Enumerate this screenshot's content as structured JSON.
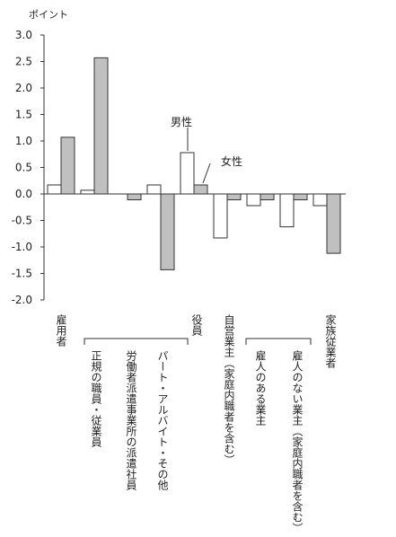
{
  "chart_data": {
    "type": "bar",
    "title": "",
    "ylabel": "ポイント",
    "xlabel": "",
    "ylim": [
      -2.0,
      3.0
    ],
    "yticks": [
      "3.0",
      "2.5",
      "2.0",
      "1.5",
      "1.0",
      "0.5",
      "0.0",
      "-0.5",
      "-1.0",
      "-1.5",
      "-2.0"
    ],
    "grid": false,
    "legend": "annotations",
    "categories": [
      "雇用者",
      "正規の職員・従業員",
      "労働者派遣事業所の派遣社員",
      "パート・アルバイト・その他",
      "役員",
      "自営業主（家庭内職者を含む）",
      "雇人のある業主",
      "雇人のない業主（家庭内職者を含む）",
      "家族従業者"
    ],
    "series": [
      {
        "name": "男性",
        "color": "#ffffff",
        "values": [
          0.17,
          0.07,
          0.0,
          0.17,
          0.78,
          -0.83,
          -0.22,
          -0.62,
          -0.22
        ]
      },
      {
        "name": "女性",
        "color": "#c0c0c0",
        "values": [
          1.07,
          2.57,
          -0.11,
          -1.43,
          0.17,
          -0.11,
          -0.11,
          -0.11,
          -1.12
        ]
      }
    ]
  }
}
